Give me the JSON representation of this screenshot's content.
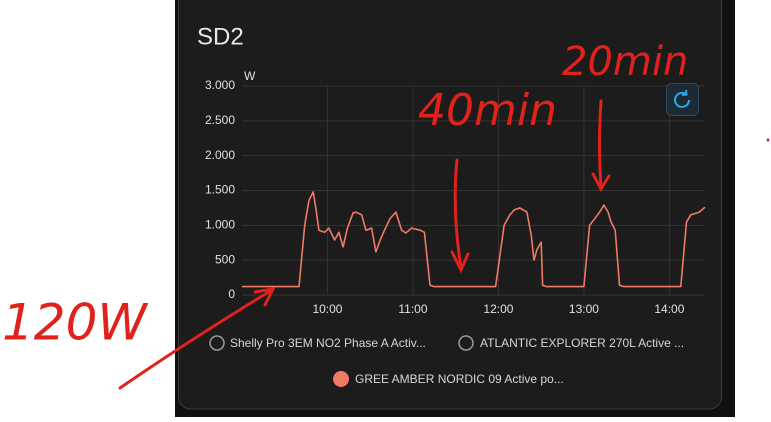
{
  "chart_data": {
    "type": "line",
    "title": "SD2",
    "y_unit": "W",
    "x": [
      "09:00",
      "09:40",
      "09:44",
      "09:47",
      "09:50",
      "09:52",
      "09:54",
      "09:58",
      "10:01",
      "10:05",
      "10:08",
      "10:11",
      "10:14",
      "10:18",
      "10:20",
      "10:24",
      "10:27",
      "10:31",
      "10:34",
      "10:37",
      "10:40",
      "10:44",
      "10:48",
      "10:52",
      "10:55",
      "10:59",
      "11:05",
      "11:08",
      "11:12",
      "11:15",
      "11:58",
      "12:04",
      "12:08",
      "12:11",
      "12:15",
      "12:20",
      "12:23",
      "12:25",
      "12:27",
      "12:30",
      "12:31",
      "12:34",
      "13:00",
      "13:04",
      "13:07",
      "13:11",
      "13:14",
      "13:17",
      "13:19",
      "13:22",
      "13:25",
      "13:28",
      "14:08",
      "14:12",
      "14:15",
      "14:21",
      "14:25"
    ],
    "series": [
      {
        "name": "Shelly Pro 3EM NO2 Phase A Activ...",
        "visible": false
      },
      {
        "name": "ATLANTIC EXPLORER 270L Active ...",
        "visible": false
      },
      {
        "name": "GREE AMBER NORDIC 09 Active po...",
        "visible": true,
        "color": "#f07a64",
        "values": [
          120,
          120,
          1000,
          1360,
          1480,
          1220,
          930,
          900,
          960,
          790,
          900,
          690,
          960,
          1180,
          1190,
          1150,
          930,
          960,
          620,
          790,
          930,
          1100,
          1190,
          930,
          890,
          960,
          930,
          900,
          140,
          120,
          120,
          1000,
          1150,
          1220,
          1250,
          1190,
          860,
          500,
          650,
          760,
          140,
          120,
          120,
          1000,
          1080,
          1190,
          1290,
          1190,
          1050,
          930,
          140,
          120,
          120,
          1050,
          1150,
          1190,
          1260
        ]
      }
    ],
    "xlim": [
      "09:00",
      "14:25"
    ],
    "xticks": [
      "10:00",
      "11:00",
      "12:00",
      "13:00",
      "14:00"
    ],
    "ylim": [
      0,
      3000
    ],
    "yticks": [
      0,
      500,
      {
        "value": 1000,
        "label": "1.000"
      },
      {
        "value": 1500,
        "label": "1.500"
      },
      {
        "value": 2000,
        "label": "2.000"
      },
      {
        "value": 2500,
        "label": "2.500"
      },
      {
        "value": 3000,
        "label": "3.000"
      }
    ],
    "grid": true,
    "annotations": [
      "40min",
      "20min",
      "120W"
    ]
  }
}
